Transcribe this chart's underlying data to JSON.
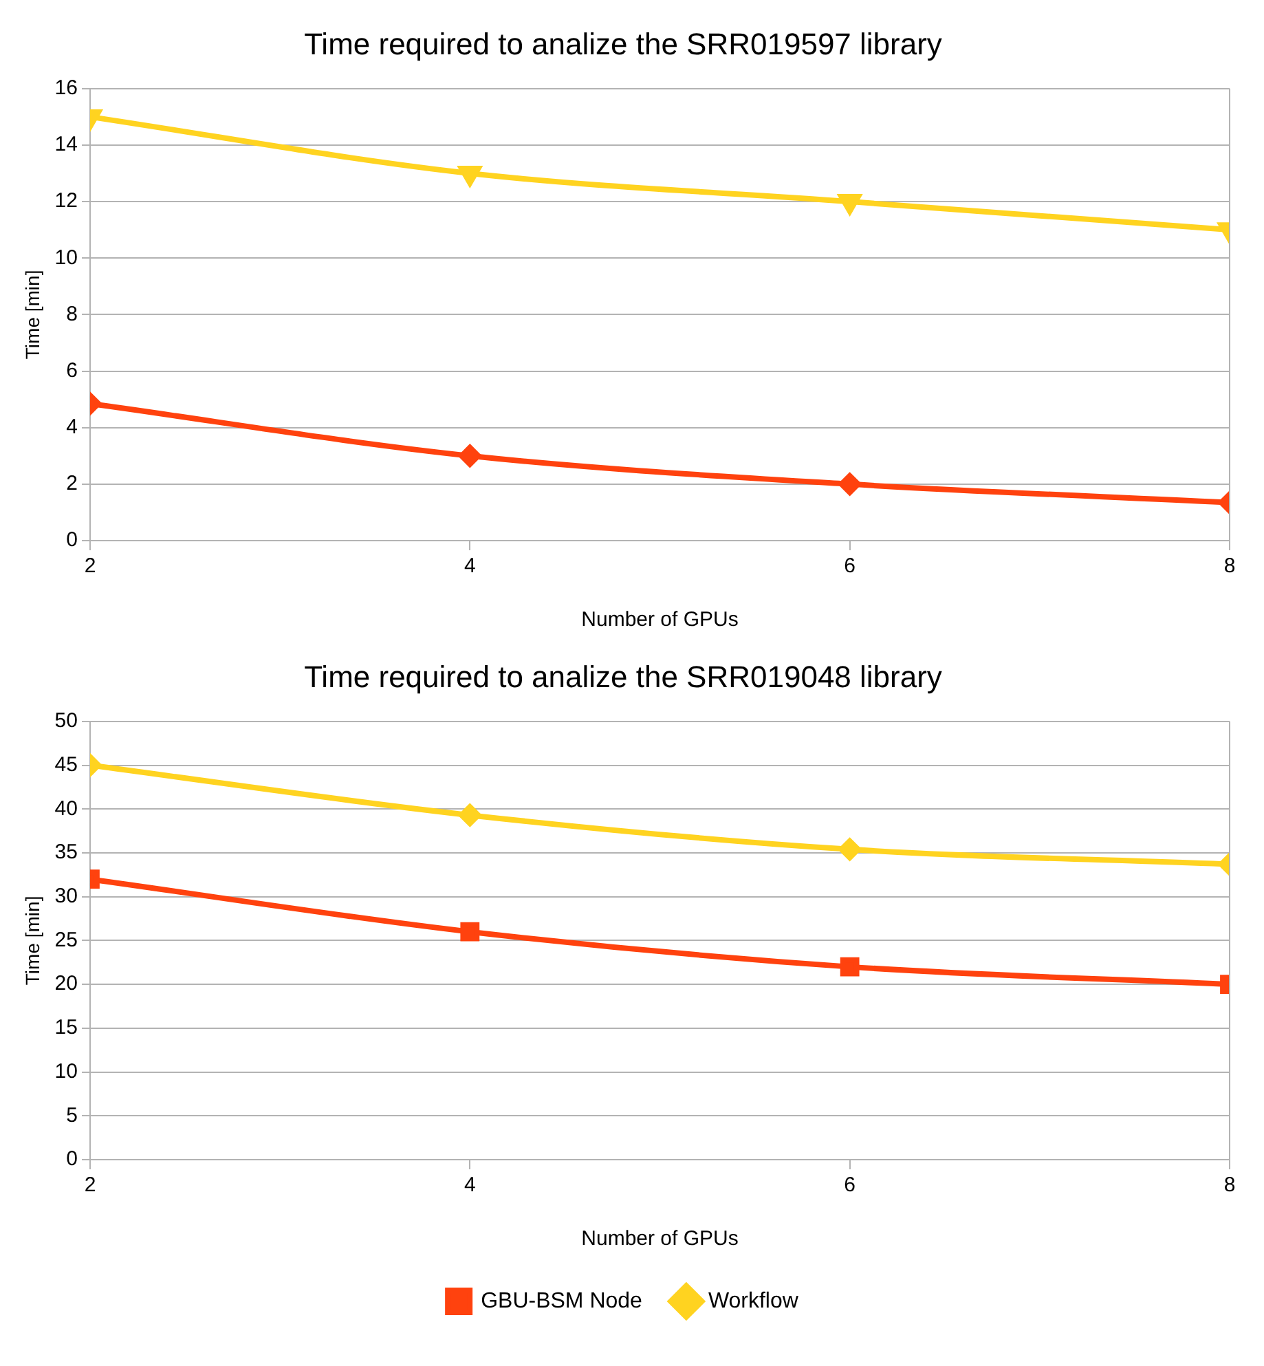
{
  "chart_data": [
    {
      "type": "line",
      "title": "Time required to analize the SRR019597 library",
      "xlabel": "Number of GPUs",
      "ylabel": "Time [min]",
      "x": [
        2,
        4,
        6,
        8
      ],
      "xlim": [
        2,
        8
      ],
      "xticks": [
        2,
        4,
        6,
        8
      ],
      "ylim": [
        0,
        16
      ],
      "yticks": [
        0,
        2,
        4,
        6,
        8,
        10,
        12,
        14,
        16
      ],
      "grid": "y",
      "legend": false,
      "series": [
        {
          "color": "#ff420e",
          "marker": "diamond",
          "values": [
            4.85,
            3,
            2,
            1.35
          ]
        },
        {
          "color": "#ffd320",
          "marker": "triangle",
          "values": [
            15,
            13,
            12,
            11
          ]
        }
      ]
    },
    {
      "type": "line",
      "title": "Time required to analize the SRR019048 library",
      "xlabel": "Number of GPUs",
      "ylabel": "Time [min]",
      "x": [
        2,
        4,
        6,
        8
      ],
      "xlim": [
        2,
        8
      ],
      "xticks": [
        2,
        4,
        6,
        8
      ],
      "ylim": [
        0,
        50
      ],
      "yticks": [
        0,
        5,
        10,
        15,
        20,
        25,
        30,
        35,
        40,
        45,
        50
      ],
      "grid": "y",
      "legend": "bottom",
      "series": [
        {
          "name": "GBU-BSM Node",
          "color": "#ff420e",
          "marker": "square",
          "values": [
            32,
            26,
            22,
            20
          ]
        },
        {
          "name": "Workflow",
          "color": "#ffd320",
          "marker": "diamond",
          "values": [
            45,
            39.3,
            35.4,
            33.7
          ]
        }
      ]
    }
  ]
}
